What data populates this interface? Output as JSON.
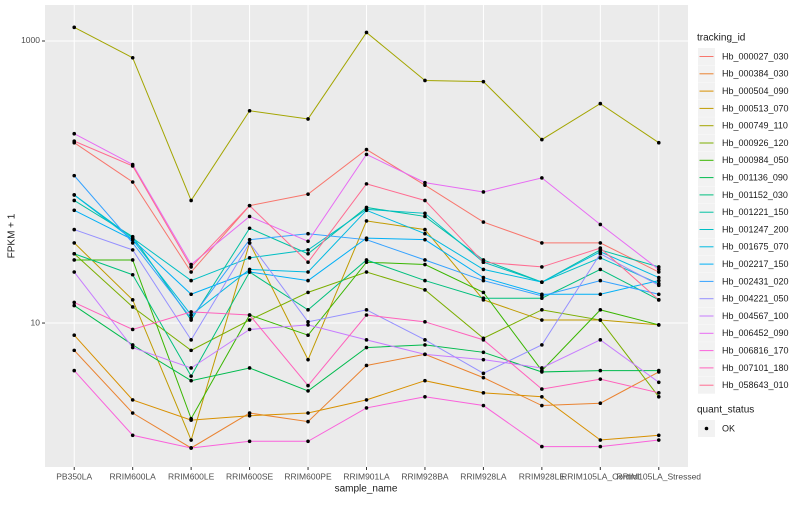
{
  "chart_data": {
    "type": "line",
    "x_label": "sample_name",
    "y_label": "FPKM + 1",
    "legend_title": "tracking_id",
    "legend2": {
      "title": "quant_status",
      "items": [
        "OK"
      ]
    },
    "log_y": true,
    "grid": true,
    "ylim": [
      0.953,
      1800
    ],
    "yticks": [
      10,
      1000
    ],
    "categories": [
      "PB350LA",
      "RRIM600LA",
      "RRIM600LE",
      "RRIM600SE",
      "RRIM600PE",
      "RRIM901LA",
      "RRIM928BA",
      "RRIM928LA",
      "RRIM928LE",
      "RRIM105LA_Control",
      "RRIM105LA_Stressed"
    ],
    "series": [
      {
        "name": "Hb_000027_030",
        "color": "#F8766D",
        "values": [
          190,
          100,
          23,
          68,
          82,
          170,
          95,
          52,
          37,
          37,
          23
        ]
      },
      {
        "name": "Hb_000384_030",
        "color": "#EA8331",
        "values": [
          6.4,
          2.3,
          1.3,
          2.3,
          2.0,
          5,
          6,
          4.1,
          2.6,
          2.7,
          4.5
        ]
      },
      {
        "name": "Hb_000504_090",
        "color": "#D89000",
        "values": [
          8.2,
          2.85,
          2.05,
          2.2,
          2.3,
          2.85,
          3.9,
          3.2,
          3.0,
          1.48,
          1.6
        ]
      },
      {
        "name": "Hb_000513_070",
        "color": "#C09B00",
        "values": [
          37,
          14.6,
          1.48,
          37,
          5.5,
          53,
          46,
          14.6,
          10.5,
          10.5,
          9.7
        ]
      },
      {
        "name": "Hb_000749_110",
        "color": "#A3A500",
        "values": [
          1250,
          760,
          74,
          320,
          280,
          1150,
          525,
          515,
          200,
          360,
          190
        ]
      },
      {
        "name": "Hb_000926_120",
        "color": "#7CAE00",
        "values": [
          31,
          13,
          6.4,
          10.5,
          16.5,
          23,
          17.2,
          7.8,
          12.4,
          10.5,
          3.0
        ]
      },
      {
        "name": "Hb_000984_050",
        "color": "#39B600",
        "values": [
          28,
          28,
          2.1,
          11.4,
          8.2,
          27,
          26,
          16.5,
          4.6,
          12.4,
          9.7
        ]
      },
      {
        "name": "Hb_001136_090",
        "color": "#00BB4E",
        "values": [
          13.3,
          7,
          3.9,
          4.8,
          3.3,
          6.7,
          7,
          6.2,
          4.5,
          4.6,
          4.6
        ]
      },
      {
        "name": "Hb_001152_030",
        "color": "#00BF7D",
        "values": [
          31,
          22,
          4.2,
          23,
          12.4,
          28,
          20,
          15,
          15,
          24,
          14.6
        ]
      },
      {
        "name": "Hb_001221_150",
        "color": "#00C1A3",
        "values": [
          74,
          41,
          10.5,
          47,
          31,
          66,
          57,
          28,
          19.5,
          33,
          25
        ]
      },
      {
        "name": "Hb_001247_200",
        "color": "#00BFC4",
        "values": [
          81,
          40,
          20,
          29,
          33,
          64,
          60,
          27,
          19.5,
          29,
          19
        ]
      },
      {
        "name": "Hb_001675_070",
        "color": "#00BAE0",
        "values": [
          81,
          39,
          11.4,
          24,
          23,
          63,
          43,
          24,
          19.5,
          32,
          21
        ]
      },
      {
        "name": "Hb_002217_150",
        "color": "#00B0F6",
        "values": [
          63,
          39,
          16,
          23,
          20,
          40,
          39,
          21,
          16,
          16,
          20
        ]
      },
      {
        "name": "Hb_002431_020",
        "color": "#35A2FF",
        "values": [
          111,
          37,
          10.8,
          39,
          43,
          39,
          28,
          20,
          15.6,
          20,
          16
        ]
      },
      {
        "name": "Hb_004221_050",
        "color": "#9590FF",
        "values": [
          46,
          33,
          7.6,
          37,
          10.2,
          12.4,
          7.6,
          4.4,
          7,
          31,
          18.5
        ]
      },
      {
        "name": "Hb_004567_100",
        "color": "#C77CFF",
        "values": [
          23,
          6.7,
          4.8,
          9,
          9.7,
          7.6,
          6.0,
          5.5,
          4.8,
          7.6,
          3.8
        ]
      },
      {
        "name": "Hb_006452_090",
        "color": "#E76BF3",
        "values": [
          220,
          133,
          26,
          57,
          38,
          157,
          99,
          85,
          107,
          50,
          24
        ]
      },
      {
        "name": "Hb_006816_170",
        "color": "#FA62DB",
        "values": [
          4.6,
          1.6,
          1.3,
          1.45,
          1.45,
          2.5,
          3.0,
          2.6,
          1.33,
          1.33,
          1.48
        ]
      },
      {
        "name": "Hb_007101_180",
        "color": "#FF62BC",
        "values": [
          14,
          9,
          12,
          11.4,
          3.6,
          11.4,
          10.2,
          7.6,
          3.4,
          4.0,
          3.2
        ]
      },
      {
        "name": "Hb_058643_010",
        "color": "#FF6C91",
        "values": [
          195,
          130,
          25,
          68,
          27,
          97,
          74,
          27,
          25,
          34,
          14.6
        ]
      }
    ]
  }
}
